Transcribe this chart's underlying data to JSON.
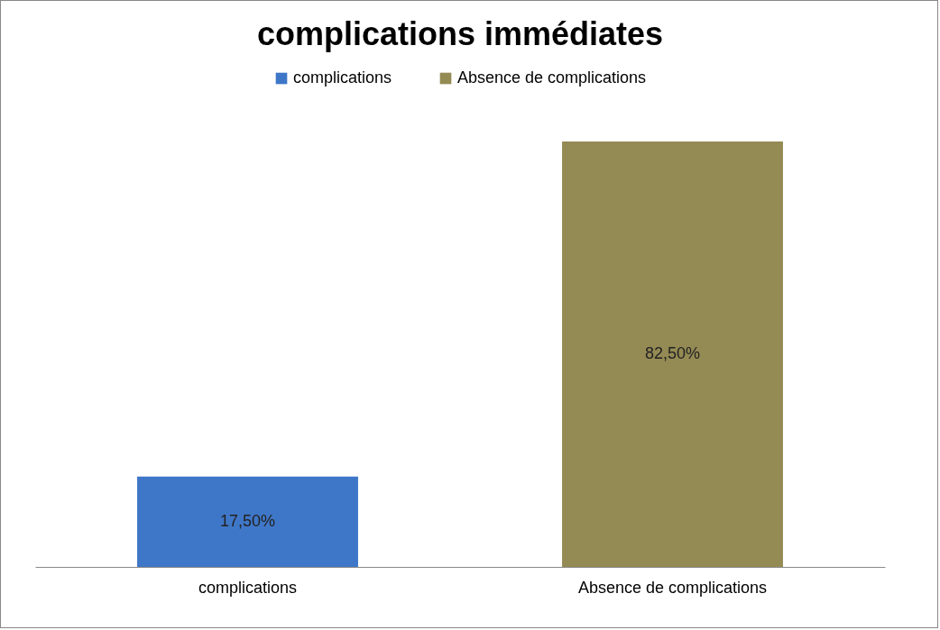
{
  "chart_data": {
    "type": "bar",
    "title": "complications immédiates",
    "categories": [
      "complications",
      "Absence de complications"
    ],
    "stacked": true,
    "series": [
      {
        "name": "complications",
        "color": "#3f77c8",
        "values": [
          17.5,
          null
        ],
        "value_labels": [
          "17,50%",
          null
        ]
      },
      {
        "name": "Absence de complications",
        "color": "#948a54",
        "values": [
          null,
          82.5
        ],
        "value_labels": [
          null,
          "82,50%"
        ]
      }
    ],
    "legend": "top",
    "tick_labels": "x"
  }
}
